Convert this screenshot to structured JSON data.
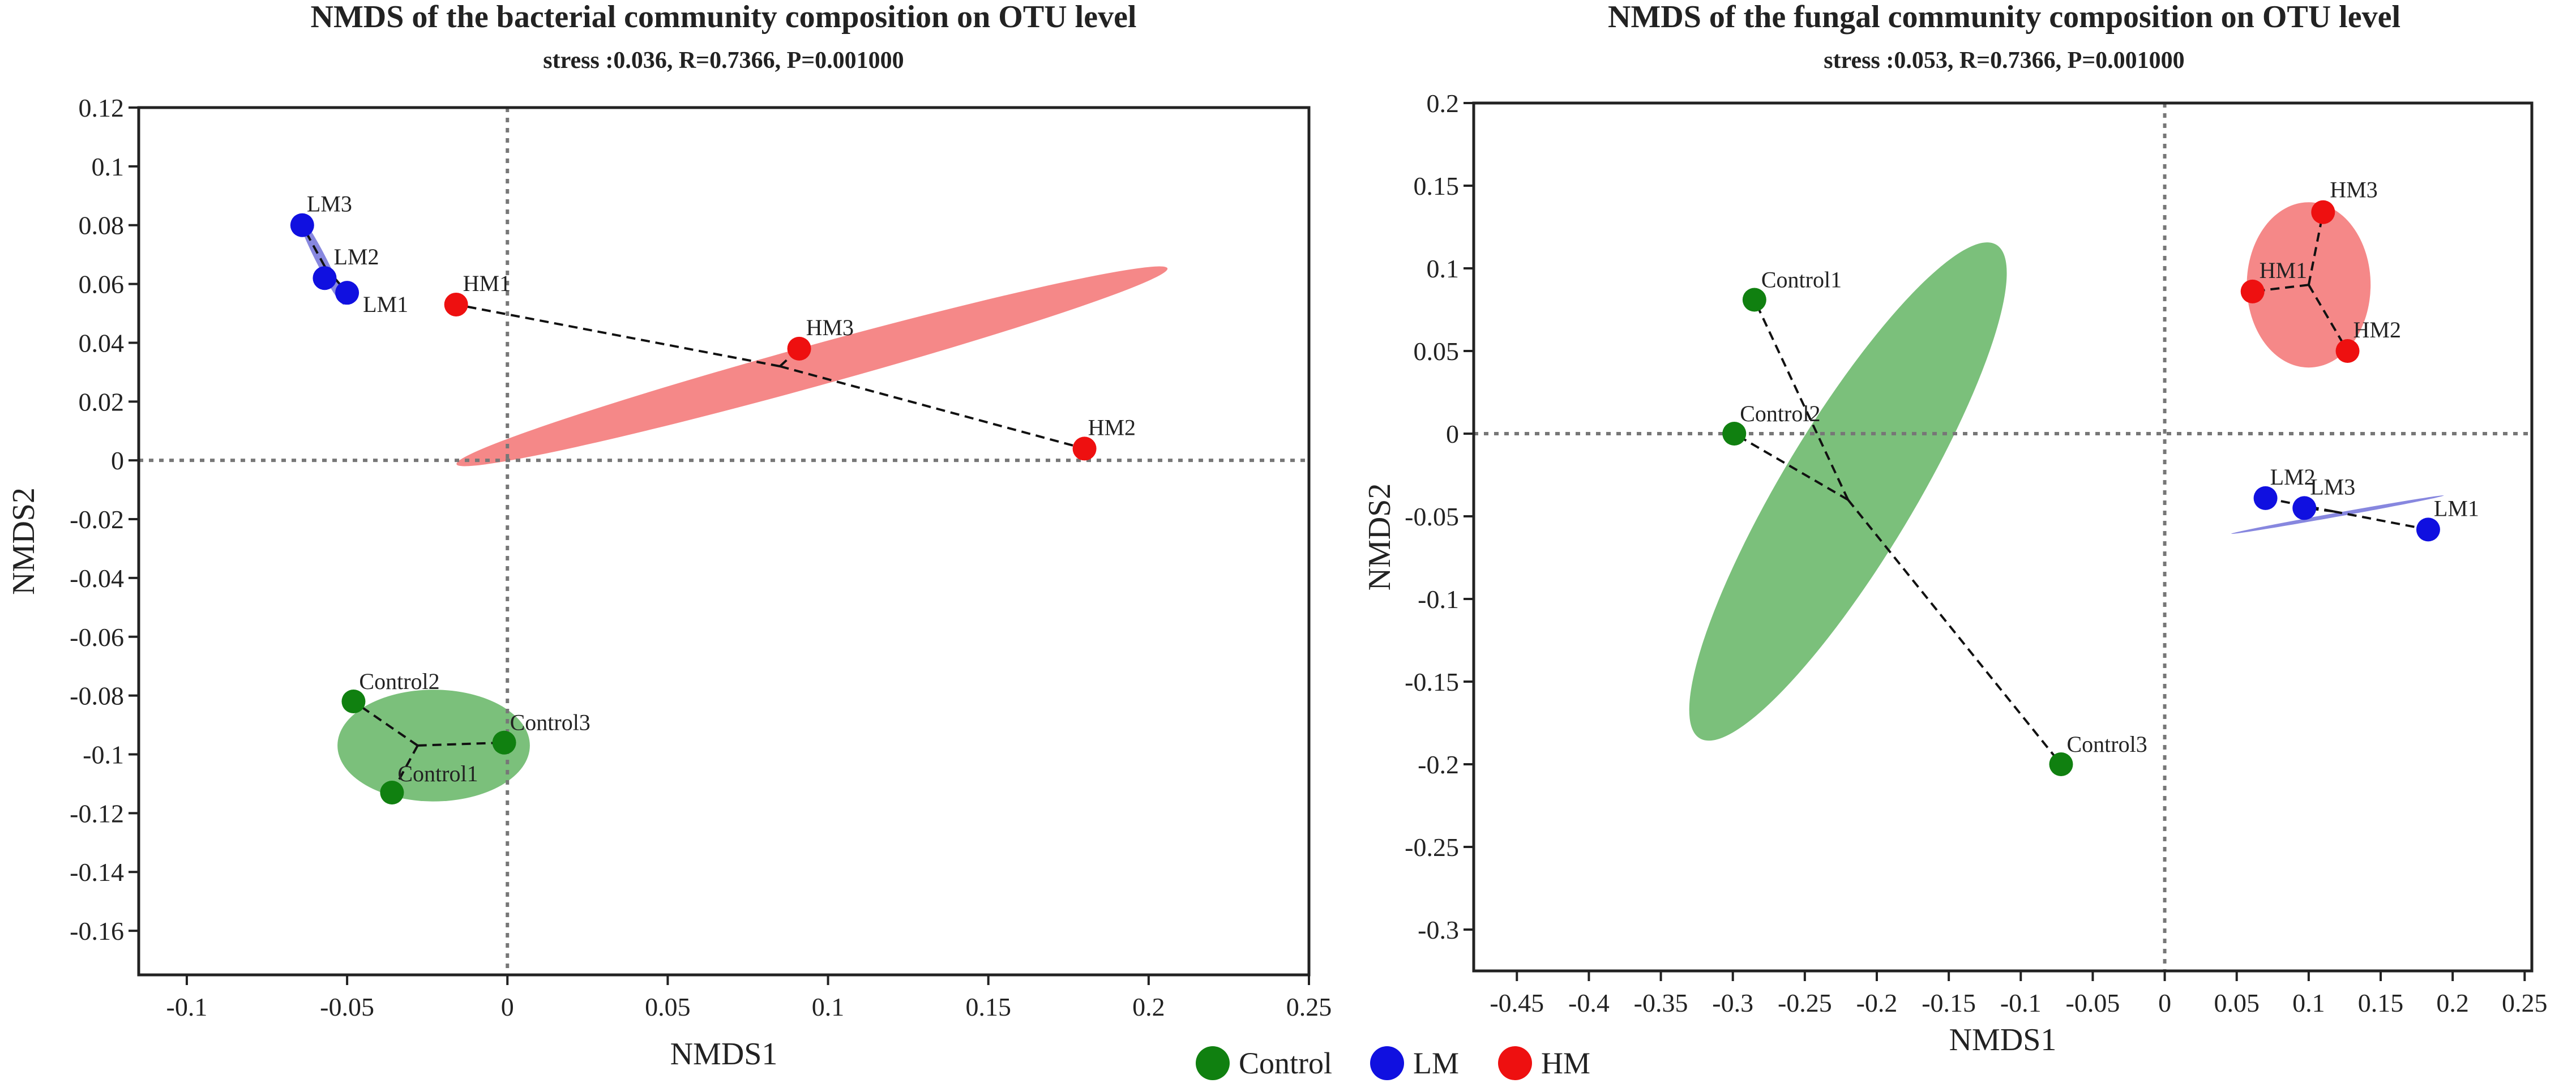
{
  "chart_data": [
    {
      "type": "scatter",
      "title": "NMDS of the bacterial community composition on OTU level",
      "subtitle": "stress :0.036, R=0.7366, P=0.001000",
      "xlabel": "NMDS1",
      "ylabel": "NMDS2",
      "xlim": [
        -0.115,
        0.25
      ],
      "ylim": [
        -0.175,
        0.12
      ],
      "xticks": [
        -0.1,
        -0.05,
        0,
        0.05,
        0.1,
        0.15,
        0.2,
        0.25
      ],
      "xtick_labels": [
        "-0.1",
        "-0.05",
        "0",
        "0.05",
        "0.1",
        "0.15",
        "0.2",
        "0.25"
      ],
      "yticks": [
        0.12,
        0.1,
        0.08,
        0.06,
        0.04,
        0.02,
        0,
        -0.02,
        -0.04,
        -0.06,
        -0.08,
        -0.1,
        -0.12,
        -0.14,
        -0.16
      ],
      "ytick_labels": [
        "0.12",
        "0.1",
        "0.08",
        "0.06",
        "0.04",
        "0.02",
        "0",
        "-0.02",
        "-0.04",
        "-0.06",
        "-0.08",
        "-0.1",
        "-0.12",
        "-0.14",
        "-0.16"
      ],
      "groups": [
        {
          "name": "Control",
          "color": "#108010",
          "ellipse_color": "#6db96d",
          "centroid": [
            -0.028,
            -0.097
          ],
          "ellipse": {
            "cx": -0.023,
            "cy": -0.097,
            "rx": 0.03,
            "ry": 0.019,
            "angle": 0
          },
          "points": [
            {
              "label": "Control1",
              "x": -0.036,
              "y": -0.113
            },
            {
              "label": "Control2",
              "x": -0.048,
              "y": -0.082
            },
            {
              "label": "Control3",
              "x": -0.001,
              "y": -0.096
            }
          ]
        },
        {
          "name": "LM",
          "color": "#1010e0",
          "ellipse_color": "#7a7adc",
          "centroid": [
            -0.057,
            0.066
          ],
          "ellipse": {
            "cx": -0.058,
            "cy": 0.068,
            "rx": 0.0155,
            "ry": 0.0018,
            "angle": -63
          },
          "points": [
            {
              "label": "LM1",
              "x": -0.05,
              "y": 0.057
            },
            {
              "label": "LM2",
              "x": -0.057,
              "y": 0.062
            },
            {
              "label": "LM3",
              "x": -0.064,
              "y": 0.08
            }
          ]
        },
        {
          "name": "HM",
          "color": "#ee1010",
          "ellipse_color": "#f47b7b",
          "centroid": [
            0.085,
            0.032
          ],
          "ellipse": {
            "cx": 0.095,
            "cy": 0.032,
            "rx": 0.115,
            "ry": 0.007,
            "angle": 15.4
          },
          "points": [
            {
              "label": "HM1",
              "x": -0.016,
              "y": 0.053
            },
            {
              "label": "HM2",
              "x": 0.18,
              "y": 0.004
            },
            {
              "label": "HM3",
              "x": 0.091,
              "y": 0.038
            }
          ]
        }
      ]
    },
    {
      "type": "scatter",
      "title": "NMDS of the fungal community composition on OTU level",
      "subtitle": "stress :0.053, R=0.7366, P=0.001000",
      "xlabel": "NMDS1",
      "ylabel": "NMDS2",
      "xlim": [
        -0.48,
        0.255
      ],
      "ylim": [
        -0.325,
        0.2
      ],
      "xticks": [
        -0.45,
        -0.4,
        -0.35,
        -0.3,
        -0.25,
        -0.2,
        -0.15,
        -0.1,
        -0.05,
        0,
        0.05,
        0.1,
        0.15,
        0.2,
        0.25
      ],
      "xtick_labels": [
        "-0.45",
        "-0.4",
        "-0.35",
        "-0.3",
        "-0.25",
        "-0.2",
        "-0.15",
        "-0.1",
        "-0.05",
        "0",
        "0.05",
        "0.1",
        "0.15",
        "0.2",
        "0.25"
      ],
      "yticks": [
        0.2,
        0.15,
        0.1,
        0.05,
        0,
        -0.05,
        -0.1,
        -0.15,
        -0.2,
        -0.25,
        -0.3
      ],
      "ytick_labels": [
        "0.2",
        "0.15",
        "0.1",
        "0.05",
        "0",
        "-0.05",
        "-0.1",
        "-0.15",
        "-0.2",
        "-0.25",
        "-0.3"
      ],
      "groups": [
        {
          "name": "Control",
          "color": "#108010",
          "ellipse_color": "#6db96d",
          "centroid": [
            -0.22,
            -0.04
          ],
          "ellipse": {
            "cx": -0.22,
            "cy": -0.035,
            "rx": 0.2,
            "ry": 0.04,
            "angle": 59
          },
          "points": [
            {
              "label": "Control1",
              "x": -0.285,
              "y": 0.081
            },
            {
              "label": "Control2",
              "x": -0.299,
              "y": 0.0
            },
            {
              "label": "Control3",
              "x": -0.072,
              "y": -0.2
            }
          ]
        },
        {
          "name": "LM",
          "color": "#1010e0",
          "ellipse_color": "#7a7adc",
          "centroid": [
            0.117,
            -0.047
          ],
          "ellipse": {
            "cx": 0.12,
            "cy": -0.049,
            "rx": 0.075,
            "ry": 0.0012,
            "angle": 10.2
          },
          "points": [
            {
              "label": "LM1",
              "x": 0.183,
              "y": -0.058
            },
            {
              "label": "LM2",
              "x": 0.07,
              "y": -0.039
            },
            {
              "label": "LM3",
              "x": 0.097,
              "y": -0.045
            }
          ]
        },
        {
          "name": "HM",
          "color": "#ee1010",
          "ellipse_color": "#f47b7b",
          "centroid": [
            0.1,
            0.09
          ],
          "ellipse": {
            "cx": 0.1,
            "cy": 0.09,
            "rx": 0.043,
            "ry": 0.05,
            "angle": 0
          },
          "points": [
            {
              "label": "HM1",
              "x": 0.061,
              "y": 0.086
            },
            {
              "label": "HM2",
              "x": 0.127,
              "y": 0.05
            },
            {
              "label": "HM3",
              "x": 0.11,
              "y": 0.134
            }
          ]
        }
      ]
    }
  ],
  "legend": {
    "placement": "bottom-center",
    "items": [
      {
        "label": "Control",
        "color": "#108010"
      },
      {
        "label": "LM",
        "color": "#1010e0"
      },
      {
        "label": "HM",
        "color": "#ee1010"
      }
    ]
  }
}
